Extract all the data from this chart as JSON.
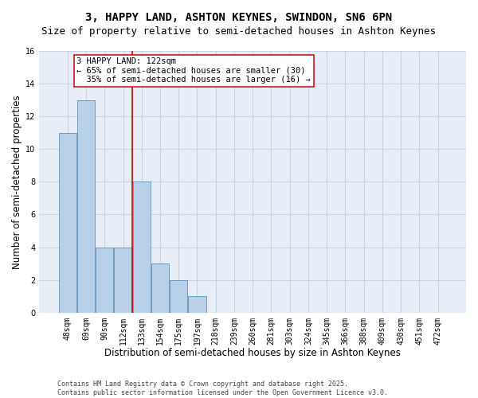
{
  "title": "3, HAPPY LAND, ASHTON KEYNES, SWINDON, SN6 6PN",
  "subtitle": "Size of property relative to semi-detached houses in Ashton Keynes",
  "xlabel": "Distribution of semi-detached houses by size in Ashton Keynes",
  "ylabel": "Number of semi-detached properties",
  "categories": [
    "48sqm",
    "69sqm",
    "90sqm",
    "112sqm",
    "133sqm",
    "154sqm",
    "175sqm",
    "197sqm",
    "218sqm",
    "239sqm",
    "260sqm",
    "281sqm",
    "303sqm",
    "324sqm",
    "345sqm",
    "366sqm",
    "388sqm",
    "409sqm",
    "430sqm",
    "451sqm",
    "472sqm"
  ],
  "values": [
    11,
    13,
    4,
    4,
    8,
    3,
    2,
    1,
    0,
    0,
    0,
    0,
    0,
    0,
    0,
    0,
    0,
    0,
    0,
    0,
    0
  ],
  "bar_color": "#b8d0e8",
  "bar_edge_color": "#6090b8",
  "vline_x": 3.5,
  "vline_color": "#cc0000",
  "annotation_text": "3 HAPPY LAND: 122sqm\n← 65% of semi-detached houses are smaller (30)\n  35% of semi-detached houses are larger (16) →",
  "annotation_box_color": "#ffffff",
  "annotation_box_edge": "#cc0000",
  "ylim": [
    0,
    16
  ],
  "yticks": [
    0,
    2,
    4,
    6,
    8,
    10,
    12,
    14,
    16
  ],
  "grid_color": "#c8d4e4",
  "bg_color": "#e8eef8",
  "footer": "Contains HM Land Registry data © Crown copyright and database right 2025.\nContains public sector information licensed under the Open Government Licence v3.0.",
  "title_fontsize": 10,
  "subtitle_fontsize": 9,
  "xlabel_fontsize": 8.5,
  "ylabel_fontsize": 8.5,
  "tick_fontsize": 7,
  "annotation_fontsize": 7.5,
  "footer_fontsize": 6
}
